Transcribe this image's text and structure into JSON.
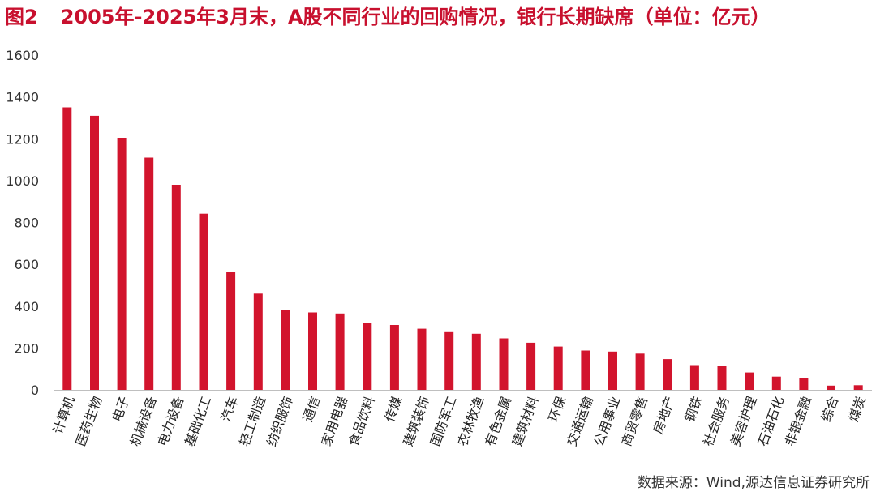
{
  "figure": {
    "label": "图2",
    "title": "2005年-2025年3月末，A股不同行业的回购情况，银行长期缺席（单位：亿元）",
    "source": "数据来源：Wind,源达信息证券研究所"
  },
  "chart_data": {
    "type": "bar",
    "unit": "亿元",
    "categories": [
      "计算机",
      "医药生物",
      "电子",
      "机械设备",
      "电力设备",
      "基础化工",
      "汽车",
      "轻工制造",
      "纺织服饰",
      "通信",
      "家用电器",
      "食品饮料",
      "传媒",
      "建筑装饰",
      "国防军工",
      "农林牧渔",
      "有色金属",
      "建筑材料",
      "环保",
      "交通运输",
      "公用事业",
      "商贸零售",
      "房地产",
      "钢铁",
      "社会服务",
      "美容护理",
      "石油石化",
      "非银金融",
      "综合",
      "煤炭"
    ],
    "values": [
      1350,
      1310,
      1205,
      1110,
      980,
      842,
      562,
      460,
      380,
      370,
      365,
      320,
      310,
      292,
      276,
      268,
      246,
      225,
      207,
      188,
      183,
      173,
      147,
      118,
      113,
      83,
      63,
      57,
      20,
      22
    ],
    "yticks": [
      0,
      200,
      400,
      600,
      800,
      1000,
      1200,
      1400,
      1600
    ],
    "ylim": [
      0,
      1600
    ],
    "grid": false,
    "legend": "none",
    "bar_color": "#d2142d"
  }
}
